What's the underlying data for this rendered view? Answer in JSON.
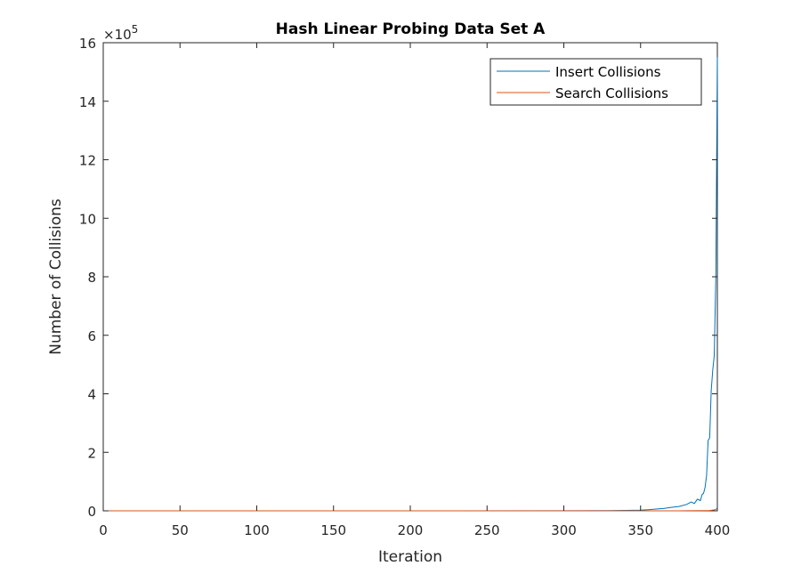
{
  "chart_data": {
    "type": "line",
    "title": "Hash Linear Probing Data Set A",
    "xlabel": "Iteration",
    "ylabel": "Number of Collisions",
    "xlim": [
      0,
      400
    ],
    "ylim": [
      0,
      1600000
    ],
    "y_exponent_label": "×10",
    "y_exponent_power": "5",
    "xticks": [
      0,
      50,
      100,
      150,
      200,
      250,
      300,
      350,
      400
    ],
    "xtick_labels": [
      "0",
      "50",
      "100",
      "150",
      "200",
      "250",
      "300",
      "350",
      "400"
    ],
    "yticks": [
      0,
      200000,
      400000,
      600000,
      800000,
      1000000,
      1200000,
      1400000,
      1600000
    ],
    "ytick_labels": [
      "0",
      "2",
      "4",
      "6",
      "8",
      "10",
      "12",
      "14",
      "16"
    ],
    "grid": false,
    "legend_position": "top-right",
    "series": [
      {
        "name": "Insert Collisions",
        "color": "#0072BD",
        "x": [
          0,
          100,
          200,
          300,
          330,
          350,
          355,
          360,
          365,
          370,
          375,
          380,
          383,
          385,
          387,
          389,
          390,
          391,
          392,
          393,
          394,
          395,
          396,
          397,
          398,
          399,
          400
        ],
        "y": [
          0,
          0,
          0,
          300,
          1000,
          2500,
          4000,
          6000,
          8000,
          12000,
          15000,
          22000,
          30000,
          25000,
          40000,
          35000,
          55000,
          60000,
          80000,
          120000,
          240000,
          250000,
          410000,
          480000,
          530000,
          800000,
          1550000
        ]
      },
      {
        "name": "Search Collisions",
        "color": "#D95319",
        "x": [
          0,
          100,
          200,
          300,
          350,
          370,
          380,
          390,
          395,
          398,
          400
        ],
        "y": [
          0,
          0,
          0,
          0,
          50,
          150,
          300,
          600,
          1200,
          3000,
          8000
        ]
      }
    ]
  }
}
